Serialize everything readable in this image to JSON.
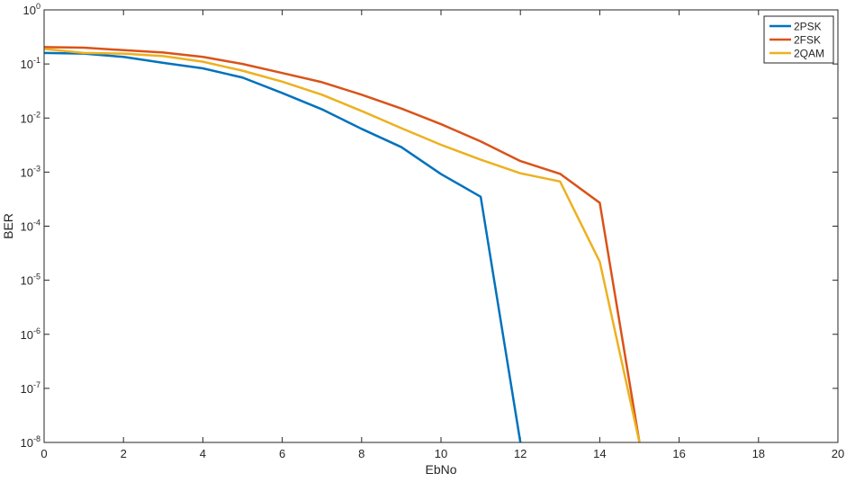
{
  "chart_data": {
    "type": "line",
    "title": "",
    "xlabel": "EbNo",
    "ylabel": "BER",
    "xlim": [
      0,
      20
    ],
    "ylim": [
      1e-08,
      1
    ],
    "yscale": "log",
    "grid": false,
    "legend_position": "top-right",
    "x_ticks": [
      {
        "value": 0,
        "label": "0"
      },
      {
        "value": 2,
        "label": "2"
      },
      {
        "value": 4,
        "label": "4"
      },
      {
        "value": 6,
        "label": "6"
      },
      {
        "value": 8,
        "label": "8"
      },
      {
        "value": 10,
        "label": "10"
      },
      {
        "value": 12,
        "label": "12"
      },
      {
        "value": 14,
        "label": "14"
      },
      {
        "value": 16,
        "label": "16"
      },
      {
        "value": 18,
        "label": "18"
      },
      {
        "value": 20,
        "label": "20"
      }
    ],
    "y_ticks": [
      {
        "value": 1,
        "base": "10",
        "exp": "0"
      },
      {
        "value": 0.1,
        "base": "10",
        "exp": "-1"
      },
      {
        "value": 0.01,
        "base": "10",
        "exp": "-2"
      },
      {
        "value": 0.001,
        "base": "10",
        "exp": "-3"
      },
      {
        "value": 0.0001,
        "base": "10",
        "exp": "-4"
      },
      {
        "value": 1e-05,
        "base": "10",
        "exp": "-5"
      },
      {
        "value": 1e-06,
        "base": "10",
        "exp": "-6"
      },
      {
        "value": 1e-07,
        "base": "10",
        "exp": "-7"
      },
      {
        "value": 1e-08,
        "base": "10",
        "exp": "-8"
      }
    ],
    "series": [
      {
        "name": "2PSK",
        "color": "#0072BD",
        "x": [
          0,
          1,
          2,
          3,
          4,
          5,
          6,
          7,
          8,
          9,
          10,
          11,
          12
        ],
        "y": [
          0.16,
          0.155,
          0.135,
          0.105,
          0.083,
          0.056,
          0.029,
          0.0145,
          0.0063,
          0.0029,
          0.00092,
          0.00035,
          1e-08
        ]
      },
      {
        "name": "2FSK",
        "color": "#D95319",
        "x": [
          0,
          1,
          2,
          3,
          4,
          5,
          6,
          7,
          8,
          9,
          10,
          11,
          12,
          13,
          14,
          15
        ],
        "y": [
          0.205,
          0.2,
          0.18,
          0.163,
          0.135,
          0.1,
          0.068,
          0.046,
          0.027,
          0.015,
          0.0077,
          0.0037,
          0.0016,
          0.00093,
          0.00027,
          1e-08
        ]
      },
      {
        "name": "2QAM",
        "color": "#EDB120",
        "x": [
          0,
          1,
          2,
          3,
          4,
          5,
          6,
          7,
          8,
          9,
          10,
          11,
          12,
          13,
          14,
          15
        ],
        "y": [
          0.19,
          0.16,
          0.155,
          0.14,
          0.11,
          0.075,
          0.047,
          0.027,
          0.0135,
          0.0065,
          0.0032,
          0.0017,
          0.00095,
          0.00067,
          2.2e-05,
          1e-08
        ]
      }
    ]
  }
}
